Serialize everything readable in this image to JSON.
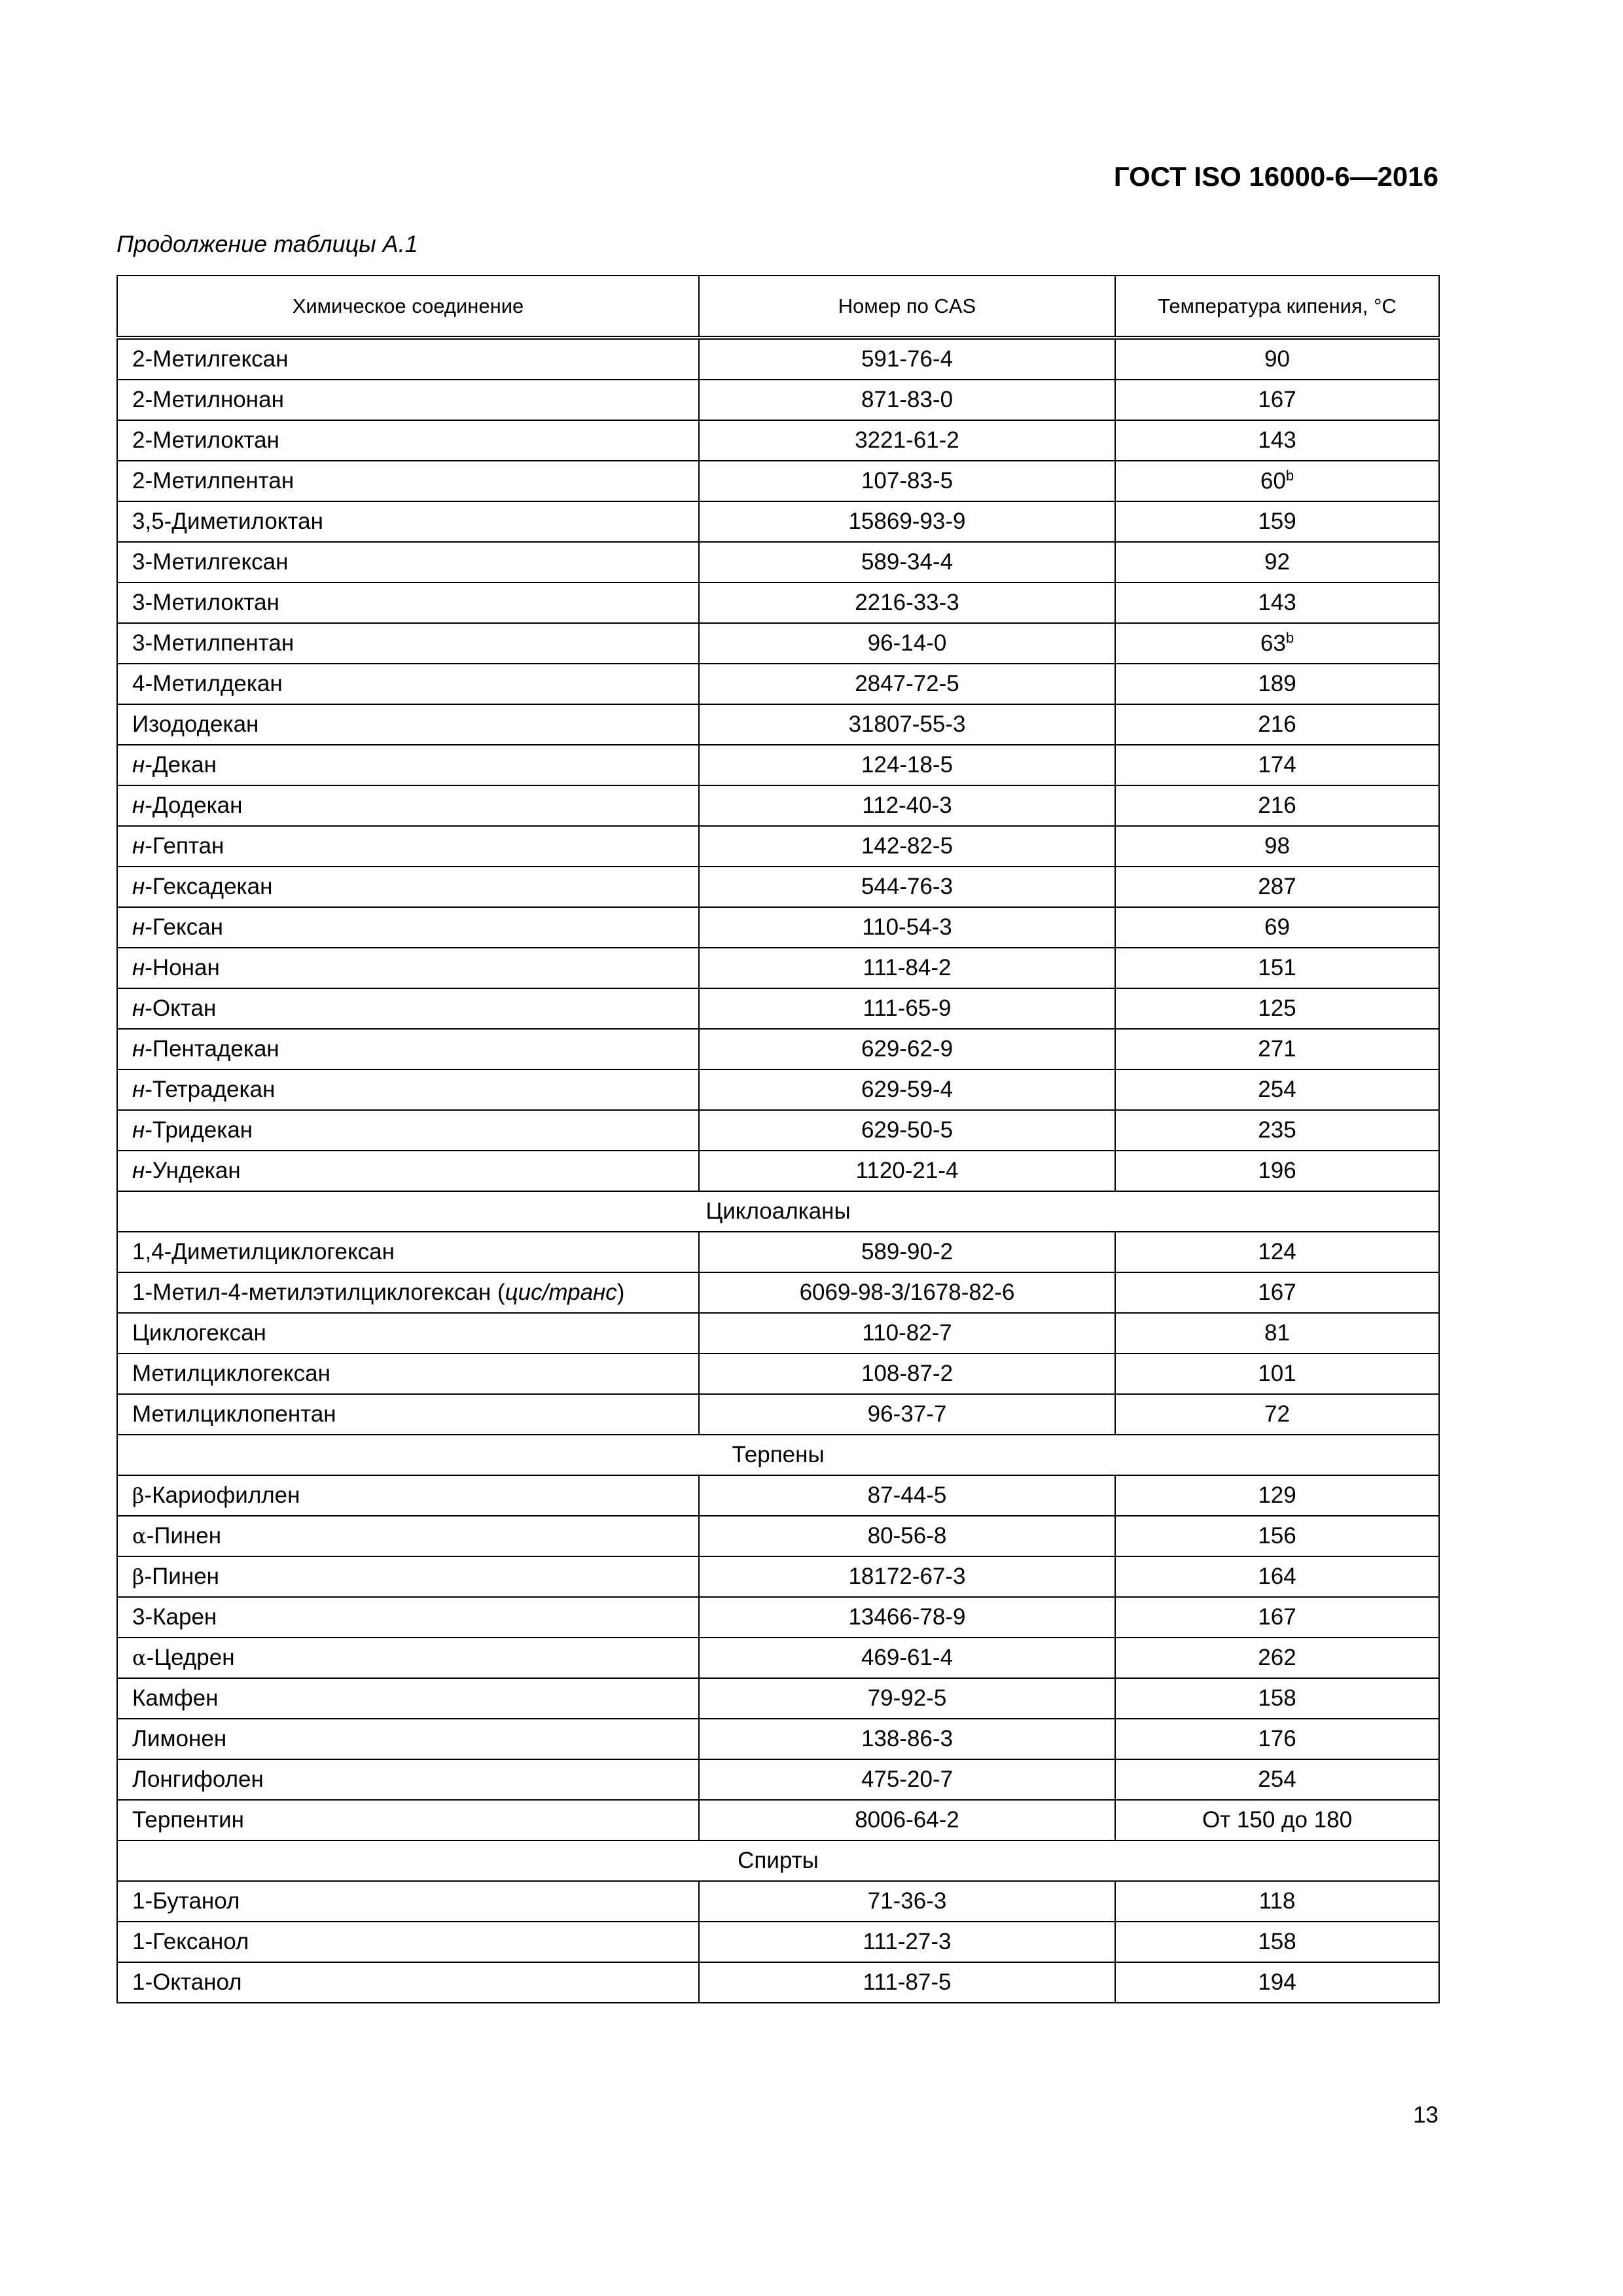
{
  "header": {
    "doc_code": "ГОСТ ISO 16000-6—2016",
    "caption": "Продолжение таблицы А.1"
  },
  "table": {
    "columns": [
      "Химическое соединение",
      "Номер по CAS",
      "Температура кипения, °С"
    ],
    "rows": [
      {
        "name": "2-Метилгексан",
        "cas": "591-76-4",
        "bp": "90"
      },
      {
        "name": "2-Метилнонан",
        "cas": "871-83-0",
        "bp": "167"
      },
      {
        "name": "2-Метилоктан",
        "cas": "3221-61-2",
        "bp": "143"
      },
      {
        "name": "2-Метилпентан",
        "cas": "107-83-5",
        "bp": "60",
        "note": "b"
      },
      {
        "name": "3,5-Диметилоктан",
        "cas": "15869-93-9",
        "bp": "159"
      },
      {
        "name": "3-Метилгексан",
        "cas": "589-34-4",
        "bp": "92"
      },
      {
        "name": "3-Метилоктан",
        "cas": "2216-33-3",
        "bp": "143"
      },
      {
        "name": "3-Метилпентан",
        "cas": "96-14-0",
        "bp": "63",
        "note": "b"
      },
      {
        "name": "4-Метилдекан",
        "cas": "2847-72-5",
        "bp": "189"
      },
      {
        "name": "Изододекан",
        "cas": "31807-55-3",
        "bp": "216"
      },
      {
        "pre": "н",
        "name": "-Декан",
        "cas": "124-18-5",
        "bp": "174"
      },
      {
        "pre": "н",
        "name": "-Додекан",
        "cas": "112-40-3",
        "bp": "216"
      },
      {
        "pre": "н",
        "name": "-Гептан",
        "cas": "142-82-5",
        "bp": "98"
      },
      {
        "pre": "н",
        "name": "-Гексадекан",
        "cas": "544-76-3",
        "bp": "287"
      },
      {
        "pre": "н",
        "name": "-Гексан",
        "cas": "110-54-3",
        "bp": "69"
      },
      {
        "pre": "н",
        "name": "-Нонан",
        "cas": "111-84-2",
        "bp": "151"
      },
      {
        "pre": "н",
        "name": "-Октан",
        "cas": "111-65-9",
        "bp": "125"
      },
      {
        "pre": "н",
        "name": "-Пентадекан",
        "cas": "629-62-9",
        "bp": "271"
      },
      {
        "pre": "н",
        "name": "-Тетрадекан",
        "cas": "629-59-4",
        "bp": "254"
      },
      {
        "pre": "н",
        "name": "-Тридекан",
        "cas": "629-50-5",
        "bp": "235"
      },
      {
        "pre": "н",
        "name": "-Ундекан",
        "cas": "1120-21-4",
        "bp": "196"
      },
      {
        "section": "Циклоалканы"
      },
      {
        "name": "1,4-Диметилциклогексан",
        "cas": "589-90-2",
        "bp": "124"
      },
      {
        "name": "1-Метил-4-метилэтилциклогексан (",
        "post": "цис/транс",
        "tail": ")",
        "cas": "6069-98-3/1678-82-6",
        "bp": "167"
      },
      {
        "name": "Циклогексан",
        "cas": "110-82-7",
        "bp": "81"
      },
      {
        "name": "Метилциклогексан",
        "cas": "108-87-2",
        "bp": "101"
      },
      {
        "name": "Метилциклопентан",
        "cas": "96-37-7",
        "bp": "72"
      },
      {
        "section": "Терпены"
      },
      {
        "greek": "β",
        "name": "-Кариофиллен",
        "cas": "87-44-5",
        "bp": "129"
      },
      {
        "greek": "α",
        "name": "-Пинен",
        "cas": "80-56-8",
        "bp": "156"
      },
      {
        "greek": "β",
        "name": "-Пинен",
        "cas": "18172-67-3",
        "bp": "164"
      },
      {
        "name": "3-Карен",
        "cas": "13466-78-9",
        "bp": "167"
      },
      {
        "greek": "α",
        "name": "-Цедрен",
        "cas": "469-61-4",
        "bp": "262"
      },
      {
        "name": "Камфен",
        "cas": "79-92-5",
        "bp": "158"
      },
      {
        "name": "Лимонен",
        "cas": "138-86-3",
        "bp": "176"
      },
      {
        "name": "Лонгифолен",
        "cas": "475-20-7",
        "bp": "254"
      },
      {
        "name": "Терпентин",
        "cas": "8006-64-2",
        "bp": "От 150 до 180"
      },
      {
        "section": "Спирты"
      },
      {
        "name": "1-Бутанол",
        "cas": "71-36-3",
        "bp": "118"
      },
      {
        "name": "1-Гексанол",
        "cas": "111-27-3",
        "bp": "158"
      },
      {
        "name": "1-Октанол",
        "cas": "111-87-5",
        "bp": "194"
      }
    ]
  },
  "footer": {
    "page_number": "13"
  }
}
